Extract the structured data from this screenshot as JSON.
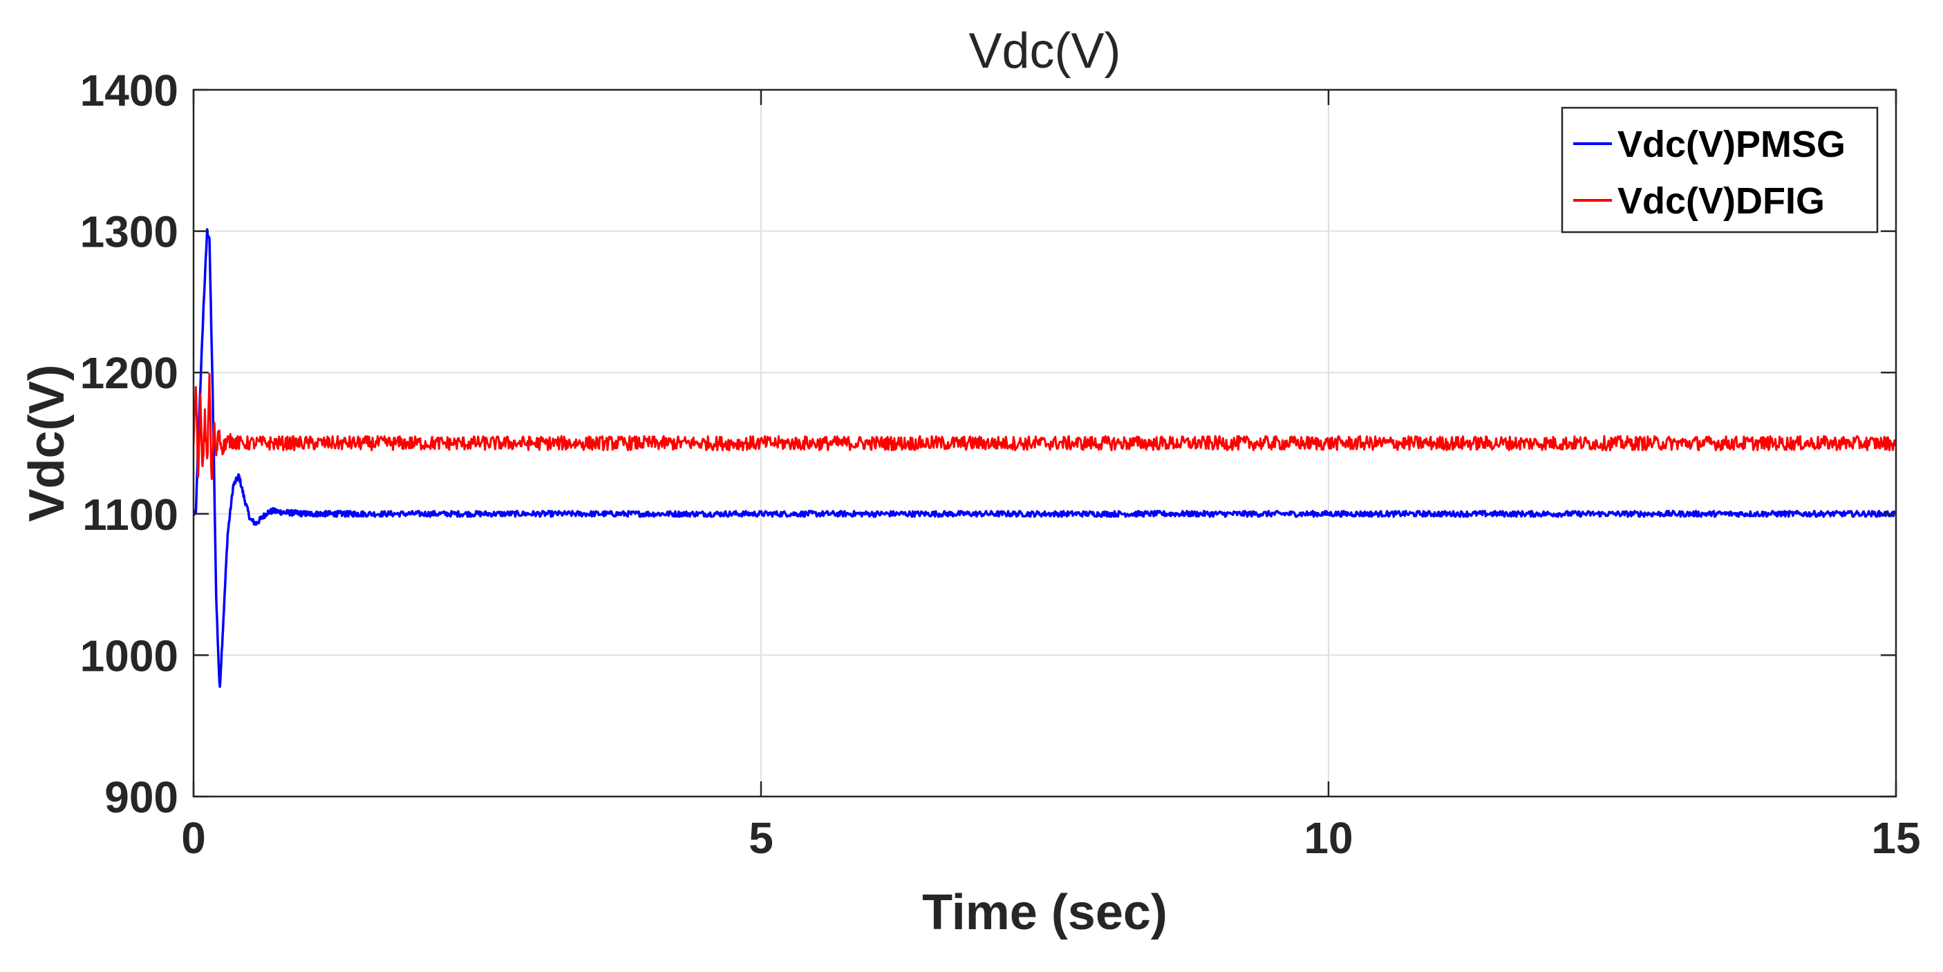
{
  "chart_data": {
    "type": "line",
    "title": "Vdc(V)",
    "xlabel": "Time (sec)",
    "ylabel": "Vdc(V)",
    "xlim": [
      0,
      15
    ],
    "ylim": [
      900,
      1400
    ],
    "xticks": [
      0,
      5,
      10,
      15
    ],
    "xtick_labels": [
      "0",
      "5",
      "10",
      "15"
    ],
    "yticks": [
      900,
      1000,
      1100,
      1200,
      1300,
      1400
    ],
    "ytick_labels": [
      "900",
      "1000",
      "1100",
      "1200",
      "1300",
      "1400"
    ],
    "grid": true,
    "legend_position": "top-right",
    "series": [
      {
        "name": "Vdc(V)PMSG",
        "color": "#0000ff",
        "noise_amplitude": 2,
        "x": [
          0,
          0.02,
          0.05,
          0.09,
          0.12,
          0.14,
          0.17,
          0.2,
          0.23,
          0.26,
          0.3,
          0.35,
          0.4,
          0.45,
          0.5,
          0.55,
          0.6,
          0.65,
          0.7,
          0.8,
          1.0,
          1.5,
          15
        ],
        "y": [
          1100,
          1100,
          1170,
          1250,
          1300,
          1295,
          1180,
          1040,
          975,
          1020,
          1085,
          1120,
          1127,
          1110,
          1096,
          1093,
          1097,
          1101,
          1102,
          1101,
          1100,
          1100,
          1100
        ]
      },
      {
        "name": "Vdc(V)DFIG",
        "color": "#ff0000",
        "noise_amplitude": 5,
        "x": [
          0,
          0.02,
          0.04,
          0.06,
          0.08,
          0.1,
          0.12,
          0.14,
          0.16,
          0.18,
          0.2,
          0.22,
          0.25,
          0.3,
          0.4,
          15
        ],
        "y": [
          1150,
          1190,
          1125,
          1180,
          1130,
          1170,
          1135,
          1195,
          1120,
          1165,
          1140,
          1158,
          1146,
          1152,
          1150,
          1150
        ]
      }
    ]
  }
}
